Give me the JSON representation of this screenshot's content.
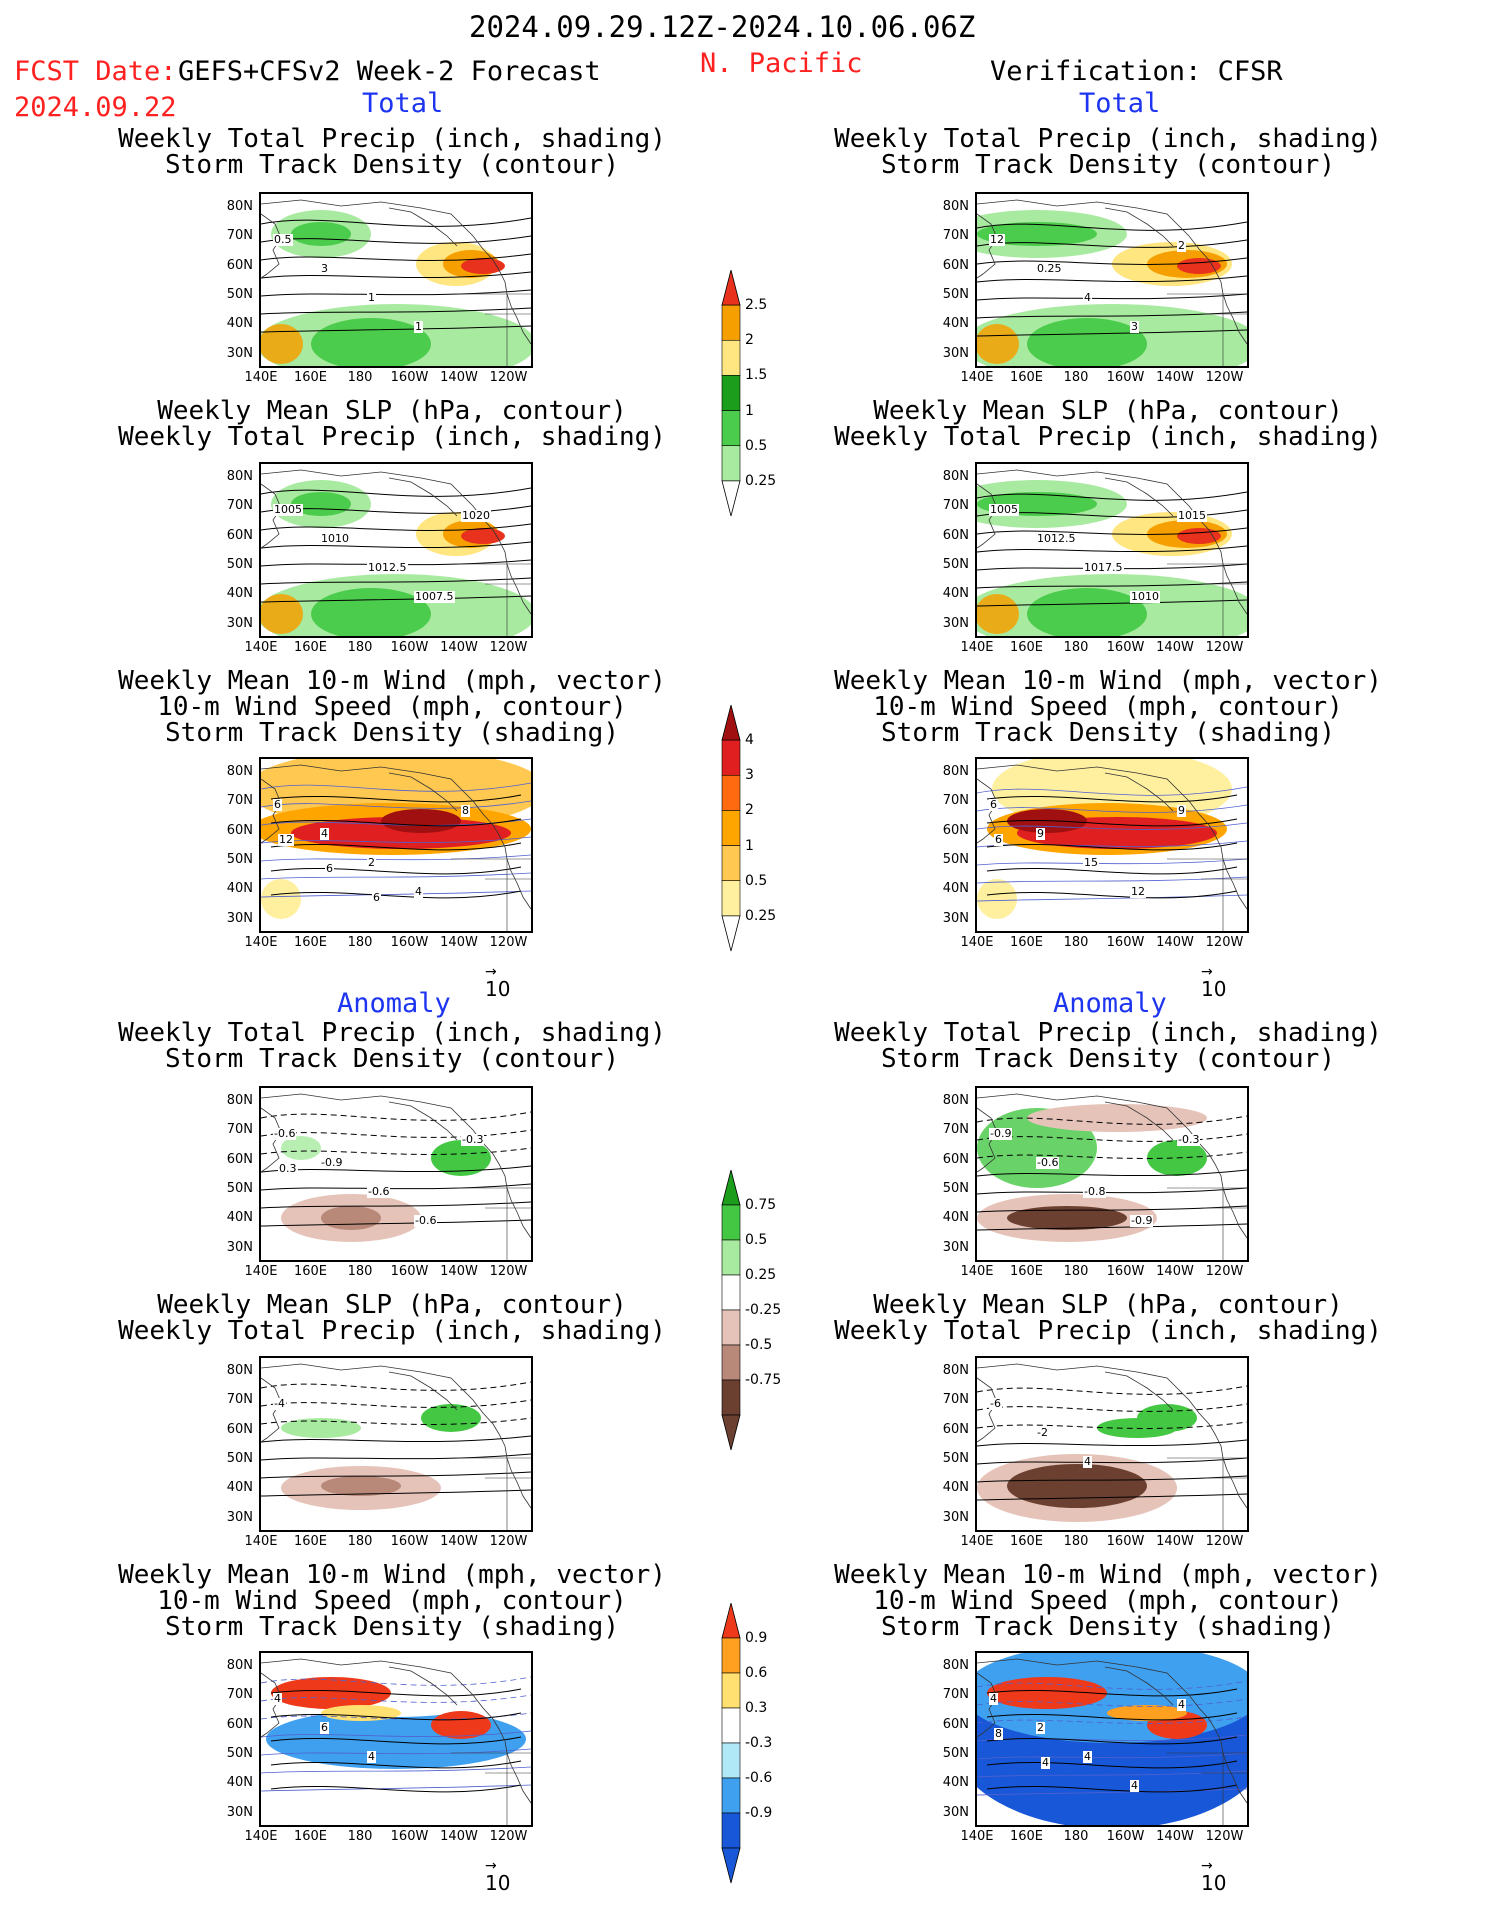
{
  "header": {
    "date_range": "2024.09.29.12Z-2024.10.06.06Z",
    "fcst_label": "FCST Date:",
    "fcst_model": "GEFS+CFSv2 Week-2 Forecast",
    "fcst_date": "2024.09.22",
    "region": "N. Pacific",
    "verification": "Verification: CFSR"
  },
  "sections": {
    "total": "Total",
    "anomaly": "Anomaly"
  },
  "panel_titles": {
    "precip_storm": [
      "Weekly Total Precip (inch, shading)",
      "Storm Track Density (contour)"
    ],
    "slp_precip": [
      "Weekly Mean SLP (hPa, contour)",
      "Weekly Total Precip (inch, shading)"
    ],
    "wind_storm": [
      "Weekly Mean 10-m Wind (mph, vector)",
      "10-m Wind Speed (mph, contour)",
      "Storm Track Density (shading)"
    ]
  },
  "axes": {
    "lat_ticks": [
      "80N",
      "70N",
      "60N",
      "50N",
      "40N",
      "30N"
    ],
    "lon_ticks": [
      "140E",
      "160E",
      "180",
      "160W",
      "140W",
      "120W"
    ]
  },
  "vector_ref": "10",
  "colorbars": {
    "total_precip": {
      "labels": [
        "2.5",
        "2",
        "1.5",
        "1",
        "0.5",
        "0.25"
      ],
      "colors": [
        "#e8321e",
        "#f5a000",
        "#ffe680",
        "#1c9e1c",
        "#4ccc4c",
        "#a8eaa0"
      ]
    },
    "total_storm": {
      "labels": [
        "4",
        "3",
        "2",
        "1",
        "0.5",
        "0.25"
      ],
      "colors": [
        "#a01010",
        "#e02020",
        "#ff6a10",
        "#ffa500",
        "#ffc850",
        "#fff0a0"
      ]
    },
    "anom_precip": {
      "labels": [
        "0.75",
        "0.5",
        "0.25",
        "-0.25",
        "-0.5",
        "-0.75"
      ],
      "colors": [
        "#1c9e1c",
        "#44c844",
        "#a8eaa0",
        "#ffffff",
        "#e5c3b8",
        "#b88878",
        "#6b4030"
      ]
    },
    "anom_storm": {
      "labels": [
        "0.9",
        "0.6",
        "0.3",
        "-0.3",
        "-0.6",
        "-0.9"
      ],
      "colors": [
        "#ee3a1a",
        "#ffa020",
        "#ffe070",
        "#ffffff",
        "#b0e8f8",
        "#40a0f0",
        "#1858d8"
      ]
    }
  },
  "contour_labels": {
    "fc_total_precip": [
      "0.5",
      "3",
      "1",
      "1"
    ],
    "vf_total_precip": [
      "12",
      "0.25",
      "4",
      "3",
      "2"
    ],
    "fc_total_slp": [
      "1005",
      "1010",
      "1012.5",
      "1007.5",
      "1020"
    ],
    "vf_total_slp": [
      "1005",
      "1012.5",
      "1017.5",
      "1010",
      "1015"
    ],
    "fc_total_wind": [
      "6",
      "4",
      "2",
      "4",
      "8",
      "12",
      "6",
      "6"
    ],
    "vf_total_wind": [
      "6",
      "9",
      "15",
      "12",
      "9",
      "6"
    ],
    "fc_anom_precip": [
      "-0.6",
      "-0.9",
      "-0.6",
      "-0.6",
      "-0.3",
      "0.3"
    ],
    "vf_anom_precip": [
      "-0.9",
      "-0.6",
      "-0.8",
      "-0.9",
      "-0.3"
    ],
    "fc_anom_slp": [
      "-4"
    ],
    "vf_anom_slp": [
      "-6",
      "-2",
      "4"
    ],
    "fc_anom_wind": [
      "4",
      "6",
      "4"
    ],
    "vf_anom_wind": [
      "4",
      "2",
      "4",
      "4",
      "4",
      "8",
      "4"
    ]
  }
}
